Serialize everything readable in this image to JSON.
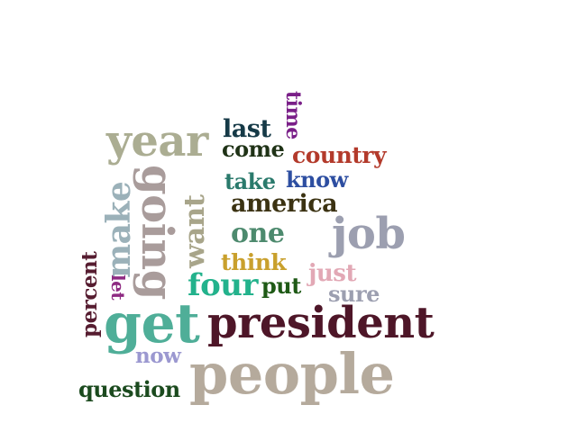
{
  "words": {
    "people": {
      "text": "people",
      "color": "#b5aa9c"
    },
    "president": {
      "text": "president",
      "color": "#4e1628"
    },
    "get": {
      "text": "get",
      "color": "#4fae98"
    },
    "job": {
      "text": "job",
      "color": "#9c9fb0"
    },
    "year": {
      "text": "year",
      "color": "#abad92"
    },
    "going": {
      "text": "going",
      "color": "#a99c9b"
    },
    "make": {
      "text": "make",
      "color": "#9bb1b9"
    },
    "want": {
      "text": "want",
      "color": "#a8a58a"
    },
    "four": {
      "text": "four",
      "color": "#23b28c"
    },
    "one": {
      "text": "one",
      "color": "#4d8a6e"
    },
    "america": {
      "text": "america",
      "color": "#3b3212"
    },
    "country": {
      "text": "country",
      "color": "#b33a2b"
    },
    "question": {
      "text": "question",
      "color": "#1b4a1e"
    },
    "last": {
      "text": "last",
      "color": "#163a47"
    },
    "come": {
      "text": "come",
      "color": "#1f3216"
    },
    "percent": {
      "text": "percent",
      "color": "#561c30"
    },
    "think": {
      "text": "think",
      "color": "#c9a02d"
    },
    "take": {
      "text": "take",
      "color": "#2a7a6c"
    },
    "know": {
      "text": "know",
      "color": "#2d4ea1"
    },
    "time": {
      "text": "time",
      "color": "#7a1f88"
    },
    "just": {
      "text": "just",
      "color": "#e2a8b5"
    },
    "sure": {
      "text": "sure",
      "color": "#9c9fb0"
    },
    "now": {
      "text": "now",
      "color": "#9b98d0"
    },
    "put": {
      "text": "put",
      "color": "#1f5a16"
    },
    "let": {
      "text": "let",
      "color": "#8e2a82"
    }
  }
}
